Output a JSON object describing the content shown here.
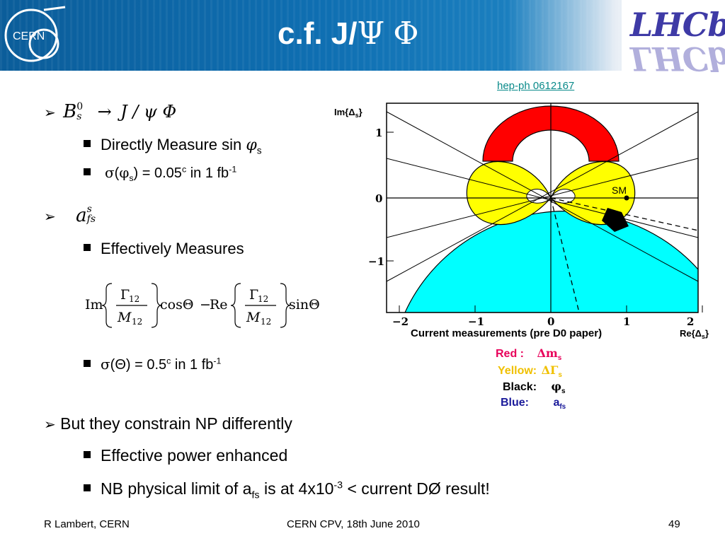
{
  "header": {
    "title_prefix": "c.f. J/",
    "title_psi": "Ψ",
    "title_phi": "Φ",
    "cern_logo_text": "CERN",
    "lhcb_logo_text": "LHCb"
  },
  "reference": "hep-ph 0612167",
  "bullets": {
    "item1": {
      "decay_B": "B",
      "decay_sup": "0",
      "decay_sub": "s",
      "decay_arrow": "→",
      "decay_rest": "J / ψ  Φ"
    },
    "item1_sub1_prefix": "Directly Measure sin ",
    "item1_sub1_phi": "φ",
    "item1_sub1_sub": "s",
    "item1_sub2_sigma": "σ",
    "item1_sub2_open": "(",
    "item1_sub2_phi": "φ",
    "item1_sub2_sub": "s",
    "item1_sub2_rest": ") = 0.05",
    "item1_sub2_sup_c": "c",
    "item1_sub2_tail": " in 1 fb",
    "item1_sub2_exp": "-1",
    "item2_a": "a",
    "item2_sup": "s",
    "item2_sub": "fs",
    "item2_sub1": "Effectively Measures",
    "formula": {
      "im": "Im",
      "gamma12_num": "Γ",
      "gamma12_sub": "12",
      "m12_den": "M",
      "m12_sub": "12",
      "cos": "cosΘ",
      "minus": "−",
      "re": "Re",
      "sin": "sinΘ"
    },
    "item2_sub2_sigma": "σ",
    "item2_sub2_theta": "(Θ) = 0.5",
    "item2_sub2_sup_c": "c",
    "item2_sub2_tail": " in 1 fb",
    "item2_sub2_exp": "-1",
    "item3": "But they constrain NP differently",
    "item3_sub1": "Effective power enhanced",
    "item3_sub2_prefix": "NB physical limit of a",
    "item3_sub2_sub": "fs",
    "item3_sub2_mid": " is at 4x10",
    "item3_sub2_exp": "-3",
    "item3_sub2_tail": " < current DØ result!"
  },
  "plot": {
    "y_axis_label": "Im{Δ",
    "y_axis_label_sub": "s",
    "y_axis_label_close": "}",
    "x_axis_label": "Re{Δ",
    "x_axis_label_sub": "s",
    "x_axis_label_close": "}",
    "sm_label": "SM",
    "y_ticks": [
      "1",
      "0",
      "−1"
    ],
    "x_ticks": [
      "−2",
      "−1",
      "0",
      "1",
      "2"
    ],
    "colors": {
      "red": "#ff0000",
      "yellow": "#ffff00",
      "cyan": "#00ffff",
      "black": "#000000"
    }
  },
  "legend": {
    "caption": "Current measurements (pre D0 paper)",
    "red_label": "Red :",
    "red_value": "Δm",
    "red_sub": "s",
    "yellow_label": "Yellow:",
    "yellow_value": "ΔΓ",
    "yellow_sub": "s",
    "black_label": "Black:",
    "black_value": "φ",
    "black_sub": "s",
    "blue_label": "Blue:",
    "blue_value": "a",
    "blue_sub": "fs",
    "label_colors": {
      "red": "#e8005a",
      "yellow": "#f0c000",
      "black": "#000000",
      "blue": "#1a1a9a"
    }
  },
  "footer": {
    "author": "R Lambert, CERN",
    "event": "CERN CPV, 18th June 2010",
    "page": "49"
  }
}
